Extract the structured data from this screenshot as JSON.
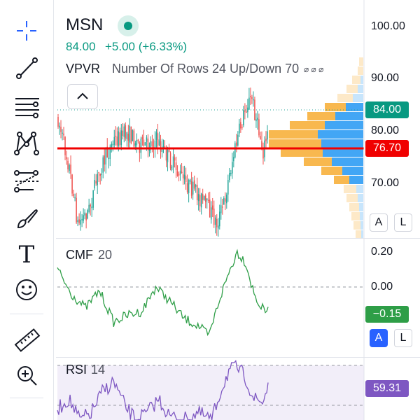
{
  "toolbar": {
    "tools": [
      {
        "name": "crosshair-icon"
      },
      {
        "name": "trend-line-icon"
      },
      {
        "name": "fib-retracement-icon"
      },
      {
        "name": "pattern-icon"
      },
      {
        "name": "prediction-icon"
      },
      {
        "name": "brush-icon"
      },
      {
        "name": "text-tool-icon"
      },
      {
        "name": "emoji-icon"
      },
      {
        "name": "ruler-icon"
      },
      {
        "name": "zoom-in-icon"
      }
    ],
    "text_glyph": "T"
  },
  "symbol": {
    "ticker": "MSN",
    "price": "84.00",
    "change": "+5.00 (+6.33%)",
    "status_color": "#089981"
  },
  "indicators": {
    "vpvr": {
      "name": "VPVR",
      "params": "Number Of Rows 24 Up/Down 70",
      "dots": "⌀ ⌀ ⌀"
    },
    "cmf": {
      "name": "CMF",
      "param": "20",
      "value": "−0.15",
      "color": "#2e9e47"
    },
    "rsi": {
      "name": "RSI",
      "param": "14",
      "value": "59.31",
      "color": "#7e57c2"
    }
  },
  "price_axis": {
    "ticks": [
      "100.00",
      "90.00",
      "80.00",
      "70.00"
    ],
    "current_price_label": "84.00",
    "line_price_label": "76.70",
    "auto_button": "A",
    "log_button": "L"
  },
  "cmf_axis": {
    "ticks": [
      "0.20",
      "0.00"
    ],
    "auto_button": "A",
    "log_button": "L"
  },
  "colors": {
    "up": "#26a69a",
    "down": "#ef5350",
    "horizontal_line": "#f00000",
    "vpvr_up": "#2196f3",
    "vpvr_down": "#f6a623"
  }
}
